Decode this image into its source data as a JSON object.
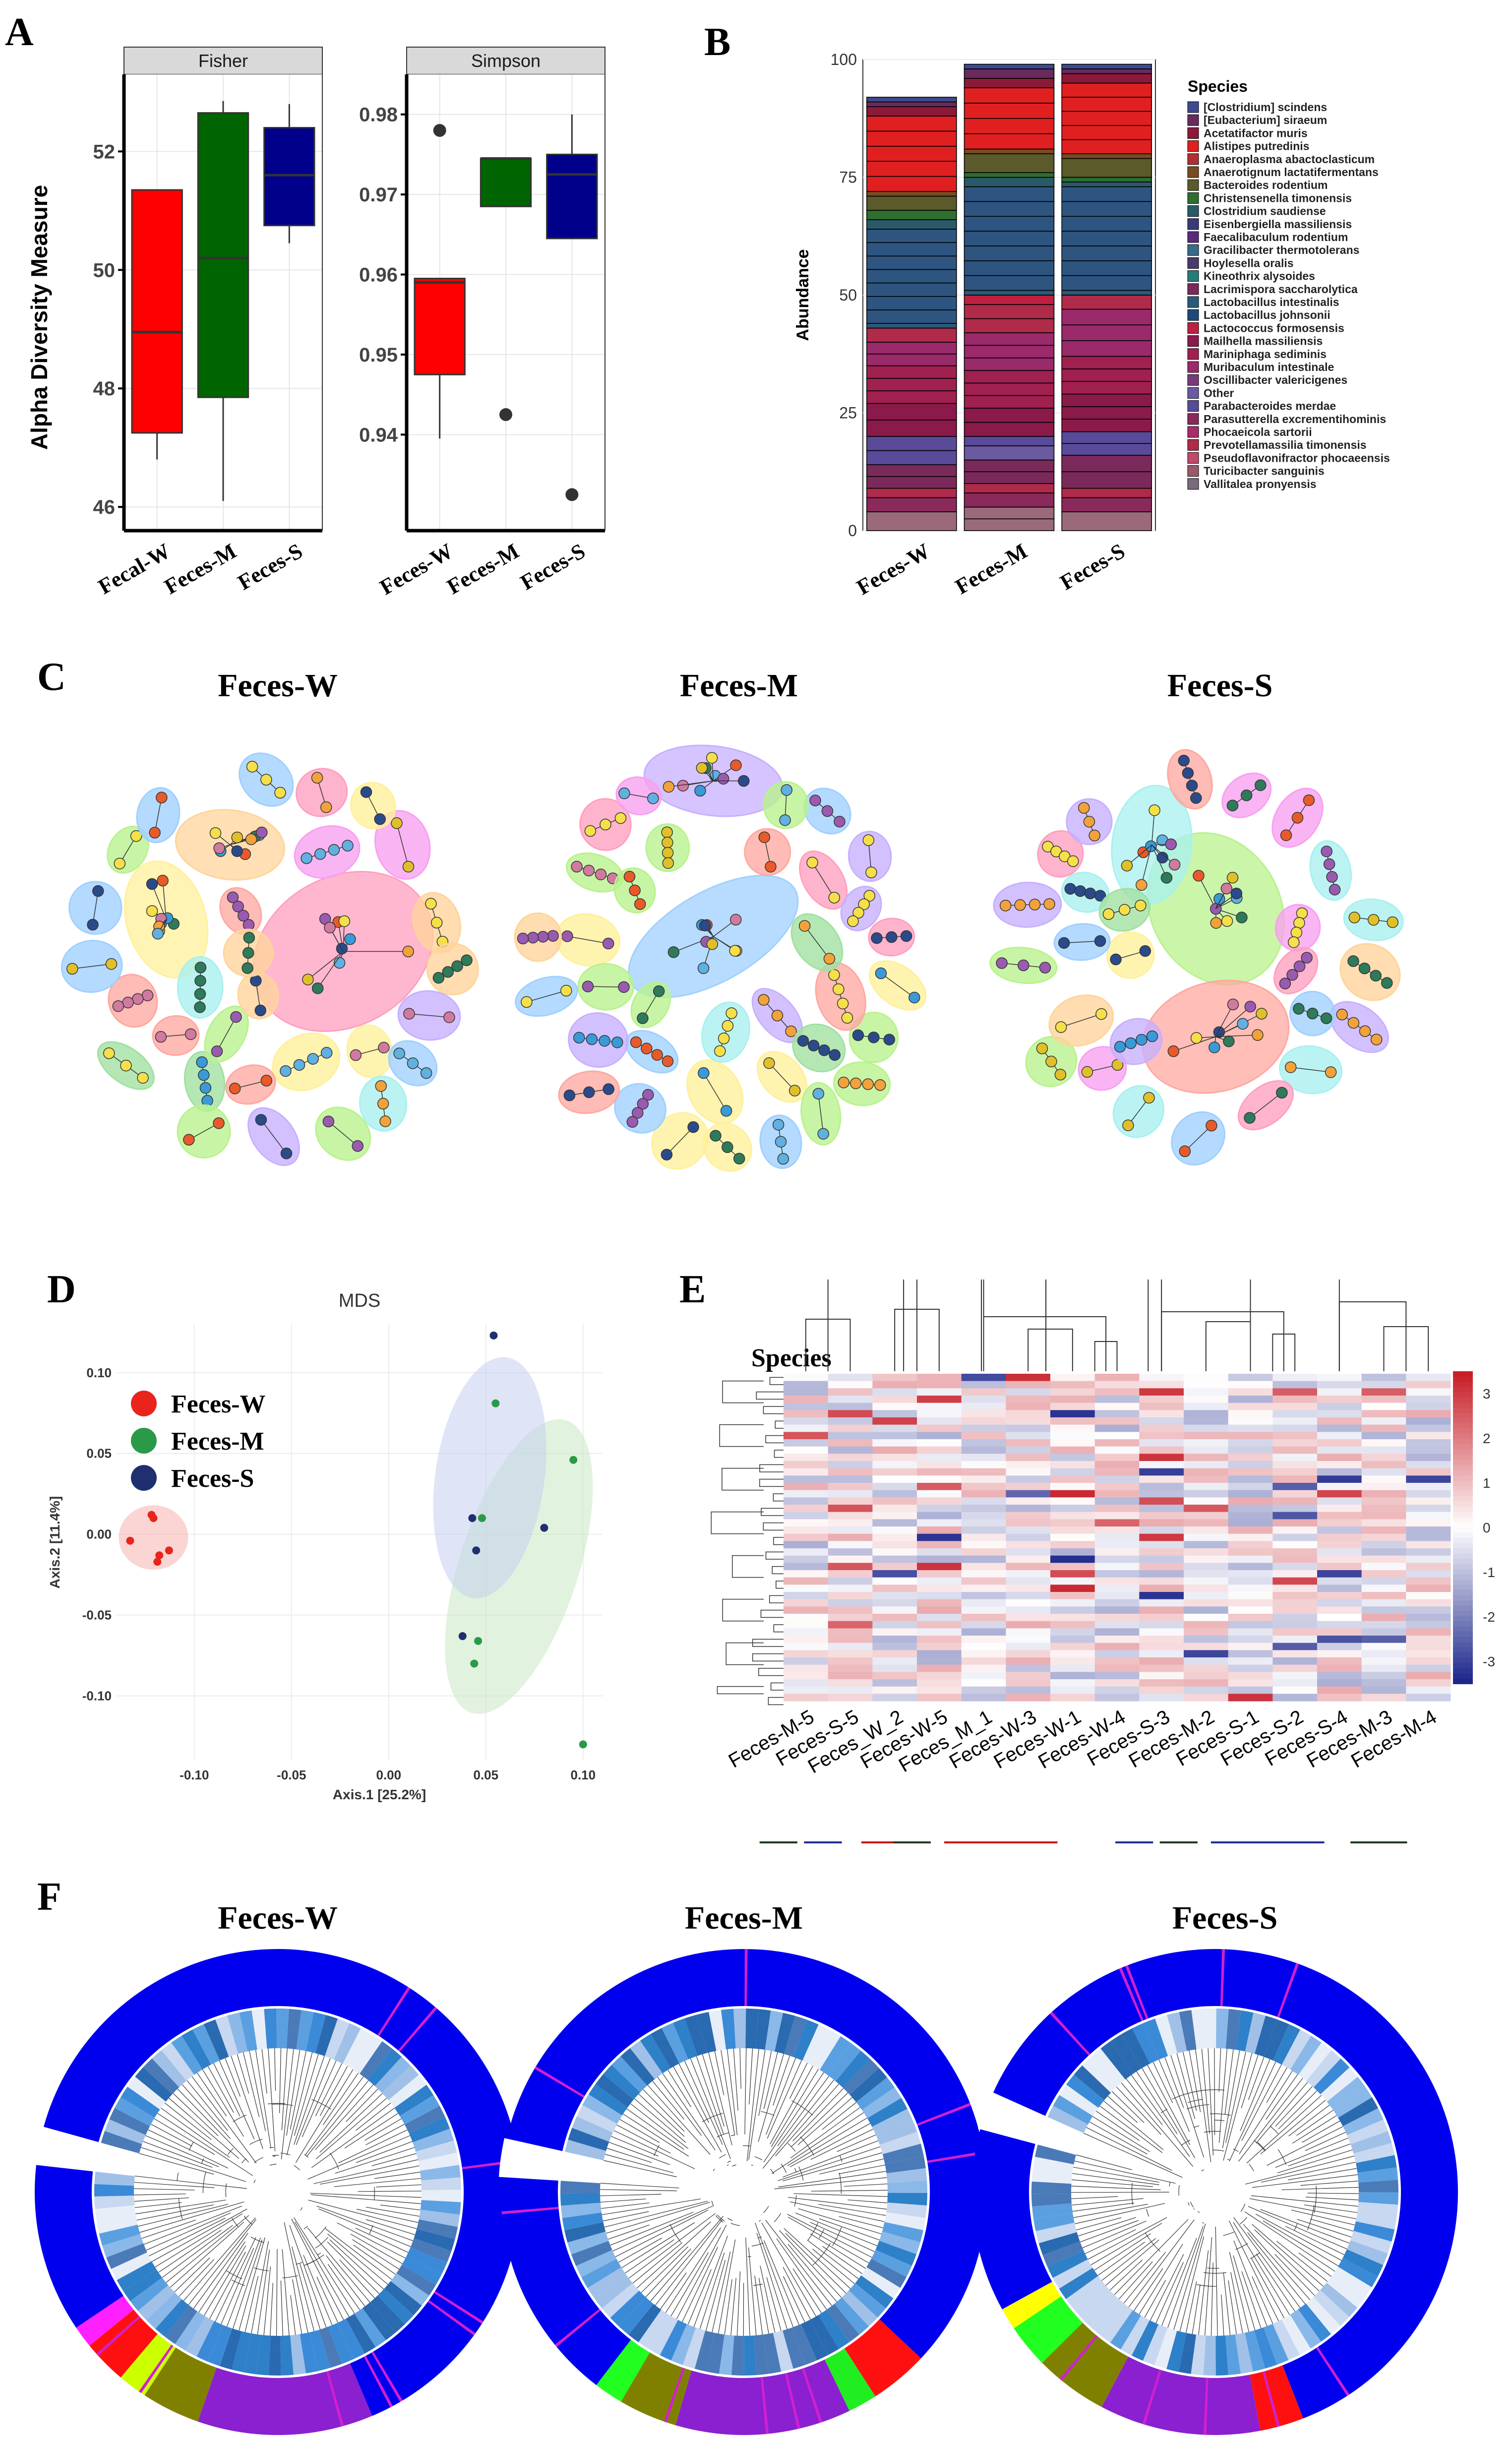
{
  "panels": {
    "a": "A",
    "b": "B",
    "c": "C",
    "d": "D",
    "e": "E",
    "f": "F"
  },
  "chart_data": [
    {
      "type": "box",
      "panel": "A",
      "ylabel": "Alpha Diversity Measure",
      "facets": [
        {
          "title": "Fisher",
          "ylim": [
            45.6,
            53.3
          ],
          "yticks": [
            46,
            48,
            50,
            52
          ],
          "groups": [
            {
              "label": "Fecal-W",
              "color": "#ff0000",
              "min": 46.8,
              "q1": 47.25,
              "median": 48.95,
              "q3": 51.35,
              "max": 51.35,
              "outliers": []
            },
            {
              "label": "Feces-M",
              "color": "#006400",
              "min": 46.1,
              "q1": 47.85,
              "median": 50.2,
              "q3": 52.65,
              "max": 52.85,
              "outliers": []
            },
            {
              "label": "Feces-S",
              "color": "#00008b",
              "min": 50.45,
              "q1": 50.75,
              "median": 51.6,
              "q3": 52.4,
              "max": 52.8,
              "outliers": []
            }
          ]
        },
        {
          "title": "Simpson",
          "ylim": [
            0.928,
            0.985
          ],
          "yticks": [
            0.94,
            0.95,
            0.96,
            0.97,
            0.98
          ],
          "groups": [
            {
              "label": "Feces-W",
              "color": "#ff0000",
              "min": 0.9395,
              "q1": 0.9475,
              "median": 0.959,
              "q3": 0.9595,
              "max": 0.9595,
              "outliers": [
                0.978
              ]
            },
            {
              "label": "Feces-M",
              "color": "#006400",
              "min": 0.9685,
              "q1": 0.9685,
              "median": 0.9745,
              "q3": 0.9745,
              "max": 0.9745,
              "outliers": [
                0.9425
              ]
            },
            {
              "label": "Feces-S",
              "color": "#00008b",
              "min": 0.9645,
              "q1": 0.9645,
              "median": 0.9725,
              "q3": 0.975,
              "max": 0.98,
              "outliers": [
                0.9325
              ]
            }
          ]
        }
      ]
    },
    {
      "type": "bar",
      "panel": "B",
      "stacked": true,
      "ylabel": "Abundance",
      "ylim": [
        0,
        100
      ],
      "yticks": [
        0,
        25,
        50,
        75,
        100
      ],
      "legend_title": "Species",
      "legend_position": "right",
      "legend": [
        {
          "name": "[Clostridium] scindens",
          "color": "#3d4a8f"
        },
        {
          "name": "[Eubacterium] siraeum",
          "color": "#6a2a5c"
        },
        {
          "name": "Acetatifactor muris",
          "color": "#8b1a3a"
        },
        {
          "name": "Alistipes putredinis",
          "color": "#e02020"
        },
        {
          "name": "Anaeroplasma abactoclasticum",
          "color": "#b03030"
        },
        {
          "name": "Anaerotignum lactatifermentans",
          "color": "#7a4a20"
        },
        {
          "name": "Bacteroides rodentium",
          "color": "#5a5a2a"
        },
        {
          "name": "Christensenella timonensis",
          "color": "#2e6e2e"
        },
        {
          "name": "Clostridium saudiense",
          "color": "#2a5a6a"
        },
        {
          "name": "Eisenbergiella massiliensis",
          "color": "#3a3a7a"
        },
        {
          "name": "Faecalibaculum rodentium",
          "color": "#5a2a7a"
        },
        {
          "name": "Gracilibacter thermotolerans",
          "color": "#3a6a8a"
        },
        {
          "name": "Hoylesella oralis",
          "color": "#4a3a6a"
        },
        {
          "name": "Kineothrix alysoides",
          "color": "#2a7a7a"
        },
        {
          "name": "Lacrimispora saccharolytica",
          "color": "#7a2a5a"
        },
        {
          "name": "Lactobacillus intestinalis",
          "color": "#2a5a7a"
        },
        {
          "name": "Lactobacillus johnsonii",
          "color": "#1e4a7a"
        },
        {
          "name": "Lactococcus formosensis",
          "color": "#c02040"
        },
        {
          "name": "Mailhella massiliensis",
          "color": "#8a1a4a"
        },
        {
          "name": "Mariniphaga sediminis",
          "color": "#a02050"
        },
        {
          "name": "Muribaculum intestinale",
          "color": "#9a2a6a"
        },
        {
          "name": "Oscillibacter valericigenes",
          "color": "#7a3a7a"
        },
        {
          "name": "Other",
          "color": "#6a5aa0"
        },
        {
          "name": "Parabacteroides merdae",
          "color": "#5a4a9a"
        },
        {
          "name": "Parasutterella excrementihominis",
          "color": "#8a2a5a"
        },
        {
          "name": "Phocaeicola sartorii",
          "color": "#aa2a6a"
        },
        {
          "name": "Prevotellamassilia timonensis",
          "color": "#b02a4a"
        },
        {
          "name": "Pseudoflavonifractor phocaeensis",
          "color": "#c04a6a"
        },
        {
          "name": "Turicibacter sanguinis",
          "color": "#9a5a6a"
        },
        {
          "name": "Vallitalea pronyensis",
          "color": "#7a6a7a"
        }
      ],
      "categories": [
        "Feces-W",
        "Feces-M",
        "Feces-S"
      ],
      "segments": [
        {
          "color": "#9a6a7a",
          "values": [
            4,
            5,
            4
          ]
        },
        {
          "color": "#8a2a5a",
          "values": [
            3,
            3,
            3
          ]
        },
        {
          "color": "#b02a4a",
          "values": [
            2,
            2,
            2
          ]
        },
        {
          "color": "#7a2a5a",
          "values": [
            5,
            5,
            7
          ]
        },
        {
          "color": "#6a5aa0",
          "values": [
            0,
            3,
            0
          ]
        },
        {
          "color": "#5a4a9a",
          "values": [
            6,
            2,
            5
          ]
        },
        {
          "color": "#8a1a4a",
          "values": [
            7,
            6,
            8
          ]
        },
        {
          "color": "#a02050",
          "values": [
            8,
            8,
            8
          ]
        },
        {
          "color": "#9a2a6a",
          "values": [
            5,
            8,
            10
          ]
        },
        {
          "color": "#b02a4a",
          "values": [
            3,
            6,
            3
          ]
        },
        {
          "color": "#c02040",
          "values": [
            0,
            2,
            0
          ]
        },
        {
          "color": "#2a5a7a",
          "values": [
            1,
            1,
            1
          ]
        },
        {
          "color": "#2e5580",
          "values": [
            20,
            22,
            22
          ]
        },
        {
          "color": "#2a5a6a",
          "values": [
            2,
            2,
            1
          ]
        },
        {
          "color": "#2e6e2e",
          "values": [
            2,
            1,
            1
          ]
        },
        {
          "color": "#5a5a2a",
          "values": [
            3,
            4,
            4
          ]
        },
        {
          "color": "#7a4a20",
          "values": [
            1,
            1,
            1
          ]
        },
        {
          "color": "#e02020",
          "values": [
            16,
            13,
            15
          ]
        },
        {
          "color": "#8b1a3a",
          "values": [
            2,
            2,
            2
          ]
        },
        {
          "color": "#6a2a5c",
          "values": [
            1,
            2,
            1
          ]
        },
        {
          "color": "#3d4a8f",
          "values": [
            1,
            1,
            1
          ]
        }
      ]
    },
    {
      "type": "network",
      "panel": "C",
      "titles": [
        "Feces-W",
        "Feces-M",
        "Feces-S"
      ]
    },
    {
      "type": "scatter",
      "panel": "D",
      "title": "MDS",
      "xlabel": "Axis.1   [25.2%]",
      "ylabel": "Axis.2   [11.4%]",
      "xlim": [
        -0.14,
        0.11
      ],
      "ylim": [
        -0.14,
        0.13
      ],
      "xticks": [
        -0.1,
        -0.05,
        0.0,
        0.05,
        0.1
      ],
      "yticks": [
        -0.1,
        -0.05,
        0.0,
        0.05,
        0.1
      ],
      "xtick_labels": [
        "-0.10",
        "-0.05",
        "0.00",
        "0.05",
        "0.10"
      ],
      "ytick_labels": [
        "-0.10",
        "-0.05",
        "0.00",
        "0.05",
        "0.10"
      ],
      "legend_position": "top-left",
      "series": [
        {
          "name": "Feces-W",
          "color": "#e8241c",
          "x": [
            -0.133,
            -0.122,
            -0.121,
            -0.119,
            -0.118,
            -0.113
          ],
          "y": [
            -0.004,
            0.012,
            0.01,
            -0.017,
            -0.013,
            -0.01
          ]
        },
        {
          "name": "Feces-M",
          "color": "#2a9a48",
          "x": [
            0.048,
            0.055,
            0.046,
            0.095,
            0.1,
            0.044
          ],
          "y": [
            0.01,
            0.081,
            -0.066,
            0.046,
            -0.13,
            -0.08
          ]
        },
        {
          "name": "Feces-S",
          "color": "#1f2f6f",
          "x": [
            0.054,
            0.043,
            0.08,
            0.045,
            0.038
          ],
          "y": [
            0.123,
            0.01,
            0.004,
            -0.01,
            -0.063
          ]
        }
      ]
    },
    {
      "type": "heatmap",
      "panel": "E",
      "row_title": "Species",
      "columns": [
        "Feces-M-5",
        "Feces-S-5",
        "Feces_W_2",
        "Feces-W-5",
        "Feces_M_1",
        "Feces-W-3",
        "Feces-W-1",
        "Feces-W-4",
        "Feces-S-3",
        "Feces-M-2",
        "Feces-S-1",
        "Feces-S-2",
        "Feces-S-4",
        "Feces-M-3",
        "Feces-M-4"
      ],
      "colorbar_ticks": [
        3,
        2,
        1,
        0,
        -1,
        -2,
        -3
      ],
      "colorbar_labels": [
        "3",
        "2",
        "1",
        "0",
        "-1",
        "-2",
        "-3"
      ],
      "colorbar_range": [
        -3.5,
        3.5
      ],
      "rows": 45
    },
    {
      "type": "tree",
      "panel": "F",
      "titles": [
        "Feces-W",
        "Feces-M",
        "Feces-S"
      ]
    }
  ]
}
